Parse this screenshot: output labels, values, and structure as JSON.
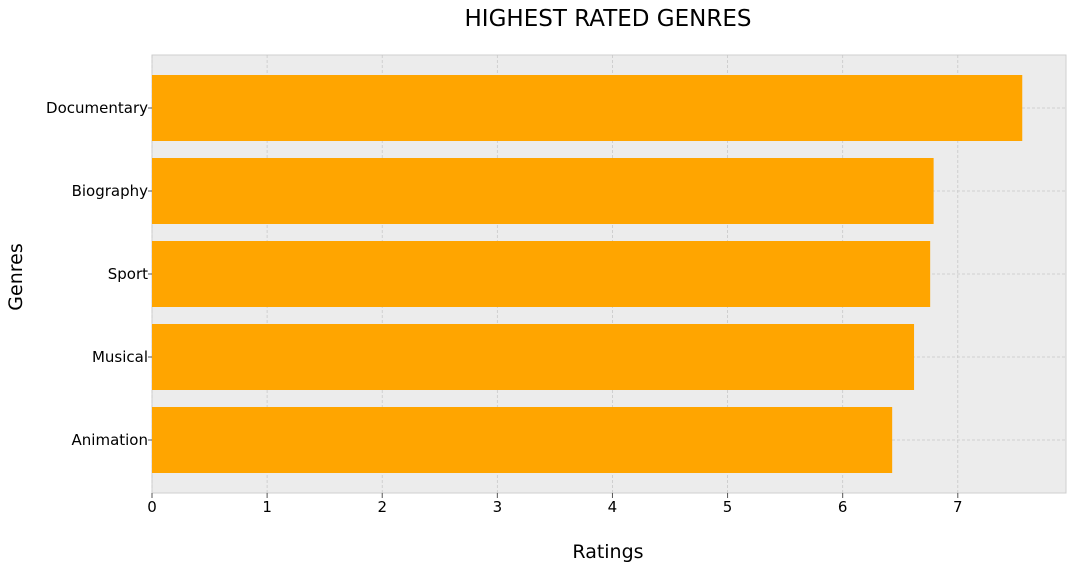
{
  "chart_data": {
    "type": "bar",
    "orientation": "horizontal",
    "title": "HIGHEST RATED GENRES",
    "xlabel": "Ratings",
    "ylabel": "Genres",
    "categories": [
      "Documentary",
      "Biography",
      "Sport",
      "Musical",
      "Animation"
    ],
    "values": [
      7.56,
      6.79,
      6.76,
      6.62,
      6.43
    ],
    "xlim": [
      0,
      7.94
    ],
    "xticks": [
      "0",
      "1",
      "2",
      "3",
      "4",
      "5",
      "6",
      "7"
    ],
    "grid": true,
    "bar_color": "#ffa500",
    "plot_background": "#ececec",
    "grid_color": "#c8c8c8"
  }
}
